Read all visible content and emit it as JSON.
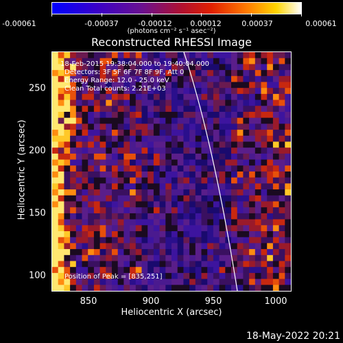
{
  "colorbar": {
    "tick_labels": [
      "-0.00061",
      "-0.00037",
      "-0.00012",
      "0.00012",
      "0.00037",
      "0.00061"
    ],
    "units_label": "(photons cm⁻² s⁻¹ asec⁻²)",
    "range": [
      -0.00061,
      0.00061
    ]
  },
  "plot": {
    "title": "Reconstructed RHESSI Image",
    "xlabel": "Heliocentric X (arcsec)",
    "ylabel": "Heliocentric Y (arcsec)",
    "xticks": [
      "850",
      "900",
      "950",
      "1000"
    ],
    "yticks": [
      "250",
      "200",
      "150",
      "100"
    ],
    "xlim": [
      820,
      1010
    ],
    "ylim": [
      90,
      280
    ]
  },
  "annotations": {
    "time_range": "18-Feb-2015 19:38:04.000 to 19:40:04.000",
    "detectors": "Detectors: 3F 5F 6F 7F 8F 9F, Att 0",
    "energy": "Energy Range: 12.0 - 25.0 keV",
    "counts": "Clean    Total counts: 2.21E+03",
    "peak": "Position of Peak = [835,251]"
  },
  "footer": {
    "date": "18-May-2022 20:21"
  }
}
